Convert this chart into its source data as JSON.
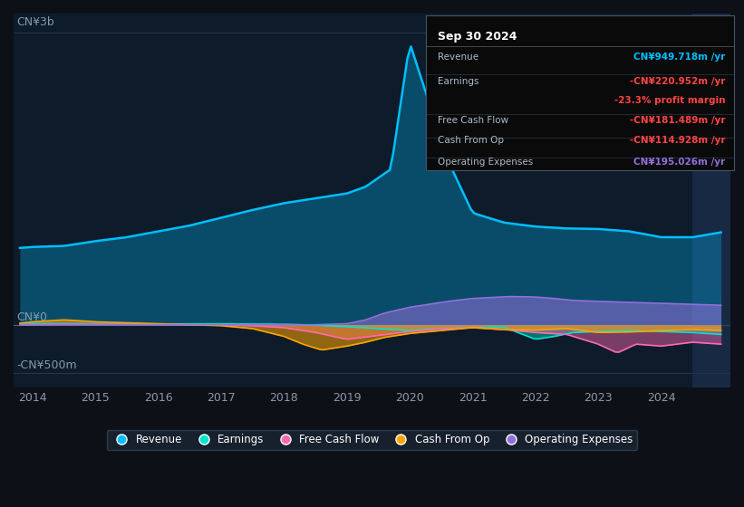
{
  "bg_color": "#0d1117",
  "plot_bg_color": "#0d1b2a",
  "y_label_top": "CN¥3b",
  "y_label_zero": "CN¥0",
  "y_label_bottom": "-CN¥500m",
  "x_ticks": [
    "2014",
    "2015",
    "2016",
    "2017",
    "2018",
    "2019",
    "2020",
    "2021",
    "2022",
    "2023",
    "2024"
  ],
  "legend_colors": [
    "#00bfff",
    "#00e5cc",
    "#ff69b4",
    "#ffa500",
    "#9370db"
  ],
  "legend_labels": [
    "Revenue",
    "Earnings",
    "Free Cash Flow",
    "Cash From Op",
    "Operating Expenses"
  ],
  "info_box": {
    "title": "Sep 30 2024",
    "rows": [
      {
        "label": "Revenue",
        "value": "CN¥949.718m /yr",
        "value_color": "#00bfff"
      },
      {
        "label": "Earnings",
        "value": "-CN¥220.952m /yr",
        "value_color": "#ff4444"
      },
      {
        "label": "",
        "value": "-23.3% profit margin",
        "value_color": "#ff4444"
      },
      {
        "label": "Free Cash Flow",
        "value": "-CN¥181.489m /yr",
        "value_color": "#ff4444"
      },
      {
        "label": "Cash From Op",
        "value": "-CN¥114.928m /yr",
        "value_color": "#ff4444"
      },
      {
        "label": "Operating Expenses",
        "value": "CN¥195.026m /yr",
        "value_color": "#9370db"
      }
    ]
  }
}
